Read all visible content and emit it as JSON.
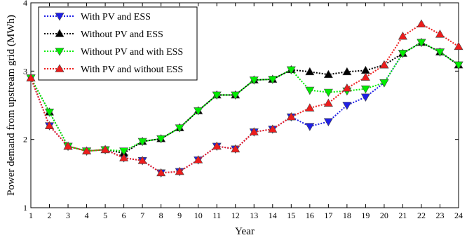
{
  "chart_data": {
    "type": "line",
    "title": "",
    "xlabel": "Year",
    "ylabel": "Power demand from upstream grid (MWh)",
    "x": [
      1,
      2,
      3,
      4,
      5,
      6,
      7,
      8,
      9,
      10,
      11,
      12,
      13,
      14,
      15,
      16,
      17,
      18,
      19,
      20,
      21,
      22,
      23,
      24
    ],
    "xlim": [
      1,
      24
    ],
    "ylim": [
      1,
      4
    ],
    "yticks": [
      1,
      2,
      3,
      4
    ],
    "grid": false,
    "legend_position": "top-left",
    "series": [
      {
        "name": "With PV and ESS",
        "color": "#1f1fe6",
        "marker": "triangle-down",
        "values": [
          2.9,
          2.2,
          1.9,
          1.83,
          1.85,
          1.73,
          1.69,
          1.51,
          1.53,
          1.7,
          1.9,
          1.86,
          2.11,
          2.15,
          2.33,
          2.19,
          2.26,
          2.5,
          2.62,
          2.83,
          3.26,
          3.42,
          3.28,
          3.09
        ]
      },
      {
        "name": "Without PV and ESS",
        "color": "#000000",
        "marker": "triangle-up",
        "values": [
          2.9,
          2.4,
          1.9,
          1.83,
          1.85,
          1.8,
          1.97,
          2.01,
          2.17,
          2.42,
          2.65,
          2.65,
          2.87,
          2.88,
          3.02,
          2.99,
          2.95,
          2.99,
          3.01,
          3.09,
          3.26,
          3.42,
          3.28,
          3.09
        ]
      },
      {
        "name": "Without PV and with ESS",
        "color": "#00ee00",
        "marker": "triangle-down",
        "values": [
          2.9,
          2.4,
          1.9,
          1.83,
          1.85,
          1.83,
          1.97,
          2.01,
          2.17,
          2.42,
          2.65,
          2.65,
          2.87,
          2.88,
          3.02,
          2.72,
          2.69,
          2.71,
          2.74,
          2.83,
          3.26,
          3.42,
          3.28,
          3.09
        ]
      },
      {
        "name": "With PV and without ESS",
        "color": "#ee1c1c",
        "marker": "triangle-up",
        "values": [
          2.9,
          2.2,
          1.9,
          1.83,
          1.85,
          1.73,
          1.69,
          1.51,
          1.53,
          1.7,
          1.9,
          1.86,
          2.11,
          2.15,
          2.33,
          2.46,
          2.53,
          2.75,
          2.91,
          3.09,
          3.51,
          3.69,
          3.54,
          3.36
        ]
      }
    ]
  }
}
